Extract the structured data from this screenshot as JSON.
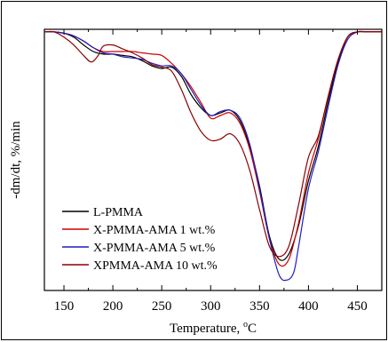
{
  "chart_data": {
    "type": "line",
    "xlabel": "Temperature, °C",
    "ylabel": "-dm/dt, %/min",
    "xlim": [
      130,
      475
    ],
    "ylim": [
      0,
      1
    ],
    "xticks": [
      150,
      200,
      250,
      300,
      350,
      400,
      450
    ],
    "grid": false,
    "legend_position": "bottom-left",
    "series": [
      {
        "name": "L-PMMA",
        "color": "#000000",
        "points": [
          [
            130,
            0.99
          ],
          [
            140,
            0.99
          ],
          [
            150,
            0.985
          ],
          [
            160,
            0.97
          ],
          [
            170,
            0.94
          ],
          [
            180,
            0.915
          ],
          [
            190,
            0.905
          ],
          [
            200,
            0.905
          ],
          [
            210,
            0.9
          ],
          [
            220,
            0.895
          ],
          [
            230,
            0.88
          ],
          [
            240,
            0.86
          ],
          [
            250,
            0.85
          ],
          [
            260,
            0.855
          ],
          [
            270,
            0.82
          ],
          [
            280,
            0.75
          ],
          [
            290,
            0.7
          ],
          [
            300,
            0.67
          ],
          [
            310,
            0.68
          ],
          [
            320,
            0.69
          ],
          [
            330,
            0.65
          ],
          [
            340,
            0.55
          ],
          [
            350,
            0.4
          ],
          [
            360,
            0.21
          ],
          [
            370,
            0.12
          ],
          [
            380,
            0.14
          ],
          [
            390,
            0.25
          ],
          [
            400,
            0.42
          ],
          [
            410,
            0.55
          ],
          [
            420,
            0.72
          ],
          [
            430,
            0.87
          ],
          [
            440,
            0.97
          ],
          [
            450,
            0.99
          ],
          [
            460,
            0.99
          ],
          [
            475,
            0.99
          ]
        ]
      },
      {
        "name": "X-PMMA-AMA 1 wt.%",
        "color": "#cc0000",
        "points": [
          [
            130,
            0.99
          ],
          [
            140,
            0.99
          ],
          [
            150,
            0.985
          ],
          [
            160,
            0.975
          ],
          [
            170,
            0.955
          ],
          [
            180,
            0.93
          ],
          [
            190,
            0.915
          ],
          [
            200,
            0.915
          ],
          [
            210,
            0.915
          ],
          [
            220,
            0.915
          ],
          [
            230,
            0.91
          ],
          [
            240,
            0.905
          ],
          [
            250,
            0.9
          ],
          [
            260,
            0.87
          ],
          [
            270,
            0.83
          ],
          [
            280,
            0.78
          ],
          [
            290,
            0.72
          ],
          [
            300,
            0.66
          ],
          [
            310,
            0.67
          ],
          [
            320,
            0.68
          ],
          [
            330,
            0.64
          ],
          [
            340,
            0.54
          ],
          [
            350,
            0.38
          ],
          [
            360,
            0.2
          ],
          [
            370,
            0.1
          ],
          [
            380,
            0.12
          ],
          [
            390,
            0.26
          ],
          [
            400,
            0.45
          ],
          [
            410,
            0.58
          ],
          [
            420,
            0.74
          ],
          [
            430,
            0.88
          ],
          [
            440,
            0.97
          ],
          [
            450,
            0.99
          ],
          [
            460,
            0.99
          ],
          [
            475,
            0.99
          ]
        ]
      },
      {
        "name": "X-PMMA-AMA 5 wt.%",
        "color": "#1f1fbf",
        "points": [
          [
            130,
            0.99
          ],
          [
            140,
            0.99
          ],
          [
            150,
            0.985
          ],
          [
            160,
            0.975
          ],
          [
            170,
            0.955
          ],
          [
            180,
            0.93
          ],
          [
            190,
            0.91
          ],
          [
            200,
            0.905
          ],
          [
            210,
            0.895
          ],
          [
            220,
            0.89
          ],
          [
            230,
            0.885
          ],
          [
            240,
            0.87
          ],
          [
            250,
            0.86
          ],
          [
            260,
            0.86
          ],
          [
            270,
            0.83
          ],
          [
            280,
            0.77
          ],
          [
            290,
            0.71
          ],
          [
            300,
            0.67
          ],
          [
            310,
            0.685
          ],
          [
            320,
            0.69
          ],
          [
            330,
            0.66
          ],
          [
            340,
            0.56
          ],
          [
            350,
            0.39
          ],
          [
            360,
            0.2
          ],
          [
            370,
            0.06
          ],
          [
            378,
            0.04
          ],
          [
            385,
            0.07
          ],
          [
            390,
            0.17
          ],
          [
            400,
            0.39
          ],
          [
            410,
            0.53
          ],
          [
            420,
            0.7
          ],
          [
            430,
            0.86
          ],
          [
            440,
            0.96
          ],
          [
            450,
            0.99
          ],
          [
            460,
            0.99
          ],
          [
            475,
            0.99
          ]
        ]
      },
      {
        "name": "XPMMA-AMA 10 wt.%",
        "color": "#8b0000",
        "points": [
          [
            130,
            0.99
          ],
          [
            140,
            0.99
          ],
          [
            150,
            0.97
          ],
          [
            160,
            0.94
          ],
          [
            170,
            0.9
          ],
          [
            178,
            0.875
          ],
          [
            185,
            0.9
          ],
          [
            190,
            0.935
          ],
          [
            200,
            0.94
          ],
          [
            210,
            0.925
          ],
          [
            220,
            0.91
          ],
          [
            230,
            0.89
          ],
          [
            240,
            0.865
          ],
          [
            250,
            0.855
          ],
          [
            260,
            0.84
          ],
          [
            270,
            0.77
          ],
          [
            280,
            0.68
          ],
          [
            290,
            0.61
          ],
          [
            300,
            0.575
          ],
          [
            310,
            0.58
          ],
          [
            320,
            0.6
          ],
          [
            330,
            0.56
          ],
          [
            340,
            0.46
          ],
          [
            350,
            0.31
          ],
          [
            360,
            0.17
          ],
          [
            370,
            0.13
          ],
          [
            380,
            0.17
          ],
          [
            390,
            0.33
          ],
          [
            400,
            0.51
          ],
          [
            410,
            0.59
          ],
          [
            420,
            0.74
          ],
          [
            430,
            0.88
          ],
          [
            440,
            0.97
          ],
          [
            450,
            0.99
          ],
          [
            460,
            0.99
          ],
          [
            475,
            0.99
          ]
        ]
      }
    ]
  }
}
